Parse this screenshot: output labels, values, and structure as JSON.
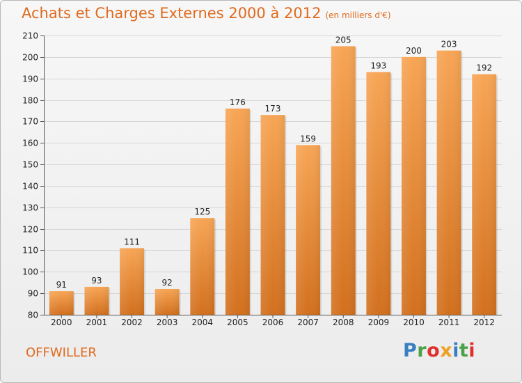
{
  "header": {
    "title": "Achats et Charges Externes 2000 à 2012",
    "unit": "(en milliers d'€)"
  },
  "footer": {
    "city": "OFFWILLER",
    "logo_letters": [
      "P",
      "r",
      "o",
      "x",
      "i",
      "t",
      "i"
    ],
    "logo_colors": [
      "#3a7fc4",
      "#4aa34a",
      "#e0302e",
      "#f0a020",
      "#3a7fc4",
      "#4aa34a",
      "#e0302e"
    ]
  },
  "chart_data": {
    "type": "bar",
    "categories": [
      "2000",
      "2001",
      "2002",
      "2003",
      "2004",
      "2005",
      "2006",
      "2007",
      "2008",
      "2009",
      "2010",
      "2011",
      "2012"
    ],
    "values": [
      91,
      93,
      111,
      92,
      125,
      176,
      173,
      159,
      205,
      193,
      200,
      203,
      192
    ],
    "title": "Achats et Charges Externes 2000 à 2012",
    "ylim": [
      80,
      210
    ],
    "yticks": [
      80,
      90,
      100,
      110,
      120,
      130,
      140,
      150,
      160,
      170,
      180,
      190,
      200,
      210
    ],
    "grid": true,
    "bar_color": "#f0913c"
  }
}
